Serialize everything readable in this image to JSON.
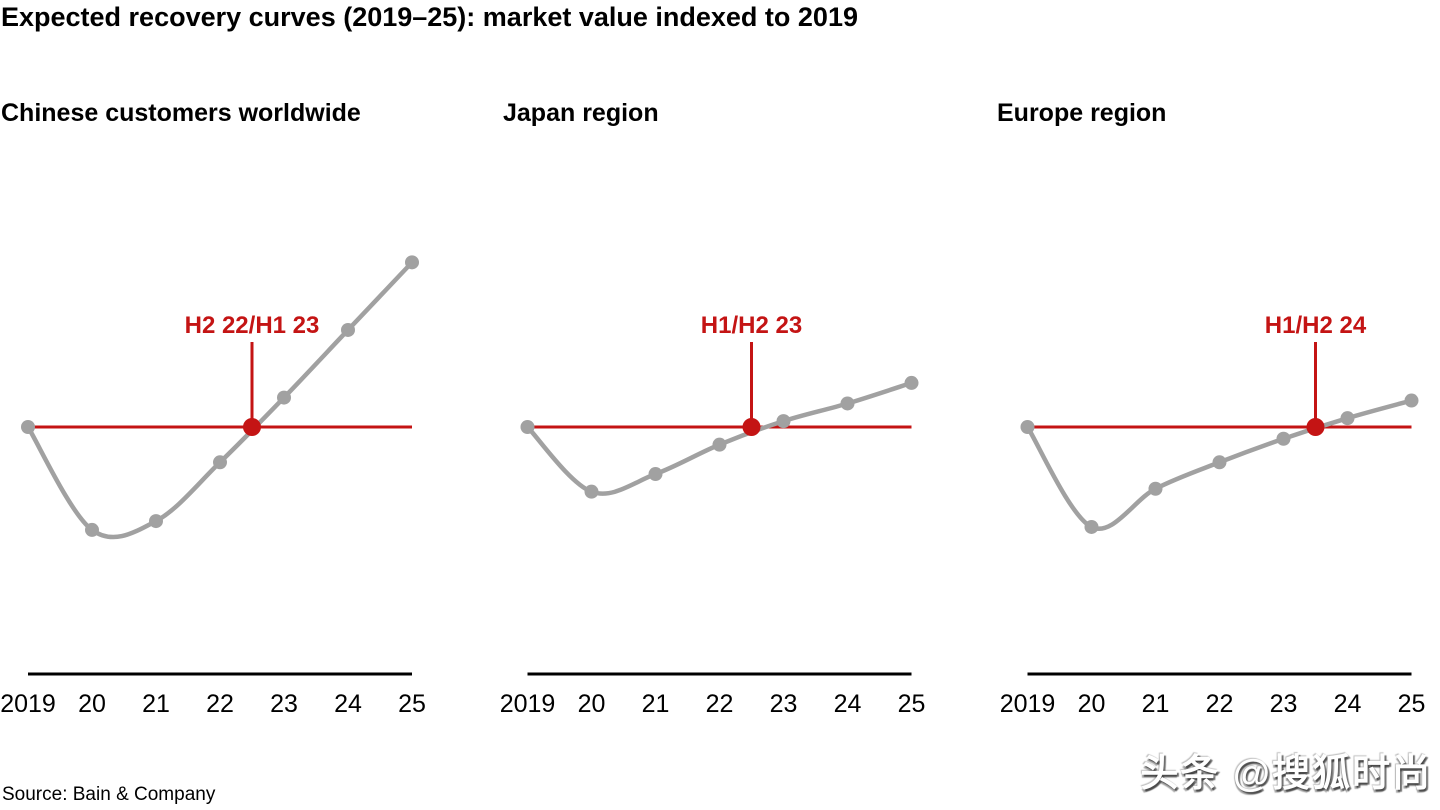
{
  "header": {
    "title": "Expected recovery curves (2019–25): market value indexed to 2019"
  },
  "footer": {
    "source": "Source: Bain & Company"
  },
  "watermark": {
    "text": "头条 @搜狐时尚"
  },
  "colors": {
    "red": "#c41414",
    "gray": "#a1a1a1",
    "axis_black": "#000000"
  },
  "chart_data": [
    {
      "type": "line",
      "title": "Chinese customers worldwide",
      "categories": [
        "2019",
        "20",
        "21",
        "22",
        "23",
        "24",
        "25"
      ],
      "values": [
        100,
        65,
        68,
        88,
        110,
        133,
        156
      ],
      "baseline_value": 100,
      "recovery_point": {
        "label": "H2 22/H1 23",
        "year_offset": 3.5,
        "value": 100
      },
      "xlabel": "",
      "ylabel": "",
      "ylim": [
        55,
        165
      ],
      "grid": false,
      "legend": "none"
    },
    {
      "type": "line",
      "title": "Japan region",
      "categories": [
        "2019",
        "20",
        "21",
        "22",
        "23",
        "24",
        "25"
      ],
      "values": [
        100,
        78,
        84,
        94,
        102,
        108,
        115
      ],
      "baseline_value": 100,
      "recovery_point": {
        "label": "H1/H2 23",
        "year_offset": 3.5,
        "value": 100
      },
      "xlabel": "",
      "ylabel": "",
      "ylim": [
        55,
        165
      ],
      "grid": false,
      "legend": "none"
    },
    {
      "type": "line",
      "title": "Europe region",
      "categories": [
        "2019",
        "20",
        "21",
        "22",
        "23",
        "24",
        "25"
      ],
      "values": [
        100,
        66,
        79,
        88,
        96,
        103,
        109
      ],
      "baseline_value": 100,
      "recovery_point": {
        "label": "H1/H2 24",
        "year_offset": 4.5,
        "value": 100
      },
      "xlabel": "",
      "ylabel": "",
      "ylim": [
        55,
        165
      ],
      "grid": false,
      "legend": "none"
    }
  ]
}
